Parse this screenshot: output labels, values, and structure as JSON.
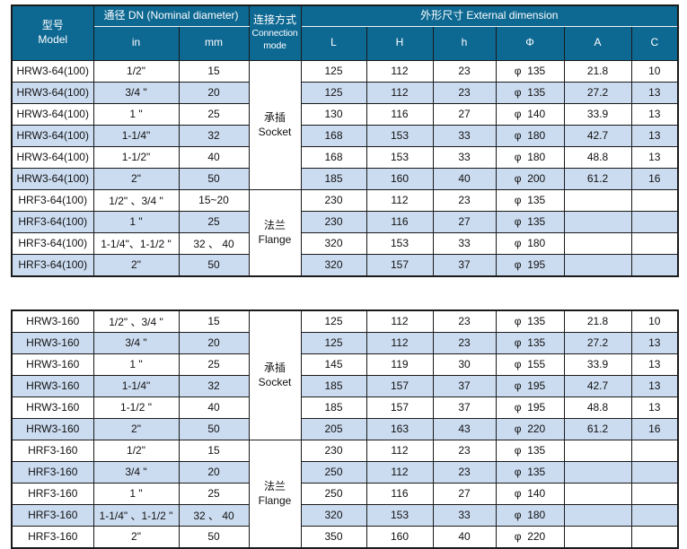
{
  "colors": {
    "header_bg": "#0d6892",
    "header_text": "#ffffff",
    "row_bg": "#ffffff",
    "row_alt_bg": "#ccdcf0",
    "border": "#1a1a1a",
    "cell_text": "#111111"
  },
  "header": {
    "model": "型号\nModel",
    "dn_group": "通径 DN  (Nominal diameter)",
    "connection_zh": "连接方式",
    "connection_en": "Connection\nmode",
    "dim_group": "外形尺寸  External dimension",
    "dn_sub": [
      "in",
      "mm"
    ],
    "dim_sub": [
      "L",
      "H",
      "h",
      "Φ",
      "A",
      "C"
    ]
  },
  "tables": [
    {
      "conn_groups": [
        {
          "row": 0,
          "span": 6,
          "label": "承插\nSocket"
        },
        {
          "row": 6,
          "span": 4,
          "label": "法兰\nFlange"
        }
      ],
      "rows": [
        [
          "HRW3-64(100)",
          "1/2\"",
          "15",
          "125",
          "112",
          "23",
          "φ  135",
          "21.8",
          "10"
        ],
        [
          "HRW3-64(100)",
          "3/4 \"",
          "20",
          "125",
          "112",
          "23",
          "φ  135",
          "27.2",
          "13"
        ],
        [
          "HRW3-64(100)",
          "1 \"",
          "25",
          "130",
          "116",
          "27",
          "φ  140",
          "33.9",
          "13"
        ],
        [
          "HRW3-64(100)",
          "1-1/4\"",
          "32",
          "168",
          "153",
          "33",
          "φ  180",
          "42.7",
          "13"
        ],
        [
          "HRW3-64(100)",
          "1-1/2\"",
          "40",
          "168",
          "153",
          "33",
          "φ  180",
          "48.8",
          "13"
        ],
        [
          "HRW3-64(100)",
          "2\"",
          "50",
          "185",
          "160",
          "40",
          "φ  200",
          "61.2",
          "16"
        ],
        [
          "HRF3-64(100)",
          "1/2\" 、3/4 \"",
          "15~20",
          "230",
          "112",
          "23",
          "φ  135",
          "",
          ""
        ],
        [
          "HRF3-64(100)",
          "1 \"",
          "25",
          "230",
          "116",
          "27",
          "φ  135",
          "",
          ""
        ],
        [
          "HRF3-64(100)",
          "1-1/4\"、1-1/2 \"",
          "32 、 40",
          "320",
          "153",
          "33",
          "φ  180",
          "",
          ""
        ],
        [
          "HRF3-64(100)",
          "2\"",
          "50",
          "320",
          "157",
          "37",
          "φ  195",
          "",
          ""
        ]
      ]
    },
    {
      "conn_groups": [
        {
          "row": 0,
          "span": 6,
          "label": "承插\nSocket"
        },
        {
          "row": 6,
          "span": 5,
          "label": "法兰\nFlange"
        }
      ],
      "rows": [
        [
          "HRW3-160",
          "1/2\" 、3/4 \"",
          "15",
          "125",
          "112",
          "23",
          "φ  135",
          "21.8",
          "10"
        ],
        [
          "HRW3-160",
          "3/4 \"",
          "20",
          "125",
          "112",
          "23",
          "φ  135",
          "27.2",
          "13"
        ],
        [
          "HRW3-160",
          "1 \"",
          "25",
          "145",
          "119",
          "30",
          "φ  155",
          "33.9",
          "13"
        ],
        [
          "HRW3-160",
          "1-1/4\"",
          "32",
          "185",
          "157",
          "37",
          "φ  195",
          "42.7",
          "13"
        ],
        [
          "HRW3-160",
          "1-1/2 \"",
          "40",
          "185",
          "157",
          "37",
          "φ  195",
          "48.8",
          "13"
        ],
        [
          "HRW3-160",
          "2\"",
          "50",
          "205",
          "163",
          "43",
          "φ  220",
          "61.2",
          "16"
        ],
        [
          "HRF3-160",
          "1/2\"",
          "15",
          "230",
          "112",
          "23",
          "φ  135",
          "",
          ""
        ],
        [
          "HRF3-160",
          "3/4 \"",
          "20",
          "250",
          "112",
          "23",
          "φ  135",
          "",
          ""
        ],
        [
          "HRF3-160",
          "1 \"",
          "25",
          "250",
          "116",
          "27",
          "φ  140",
          "",
          ""
        ],
        [
          "HRF3-160",
          "1-1/4\" 、1-1/2 \"",
          "32 、 40",
          "320",
          "153",
          "33",
          "φ  180",
          "",
          ""
        ],
        [
          "HRF3-160",
          "2\"",
          "50",
          "350",
          "160",
          "40",
          "φ  220",
          "",
          ""
        ]
      ]
    }
  ]
}
